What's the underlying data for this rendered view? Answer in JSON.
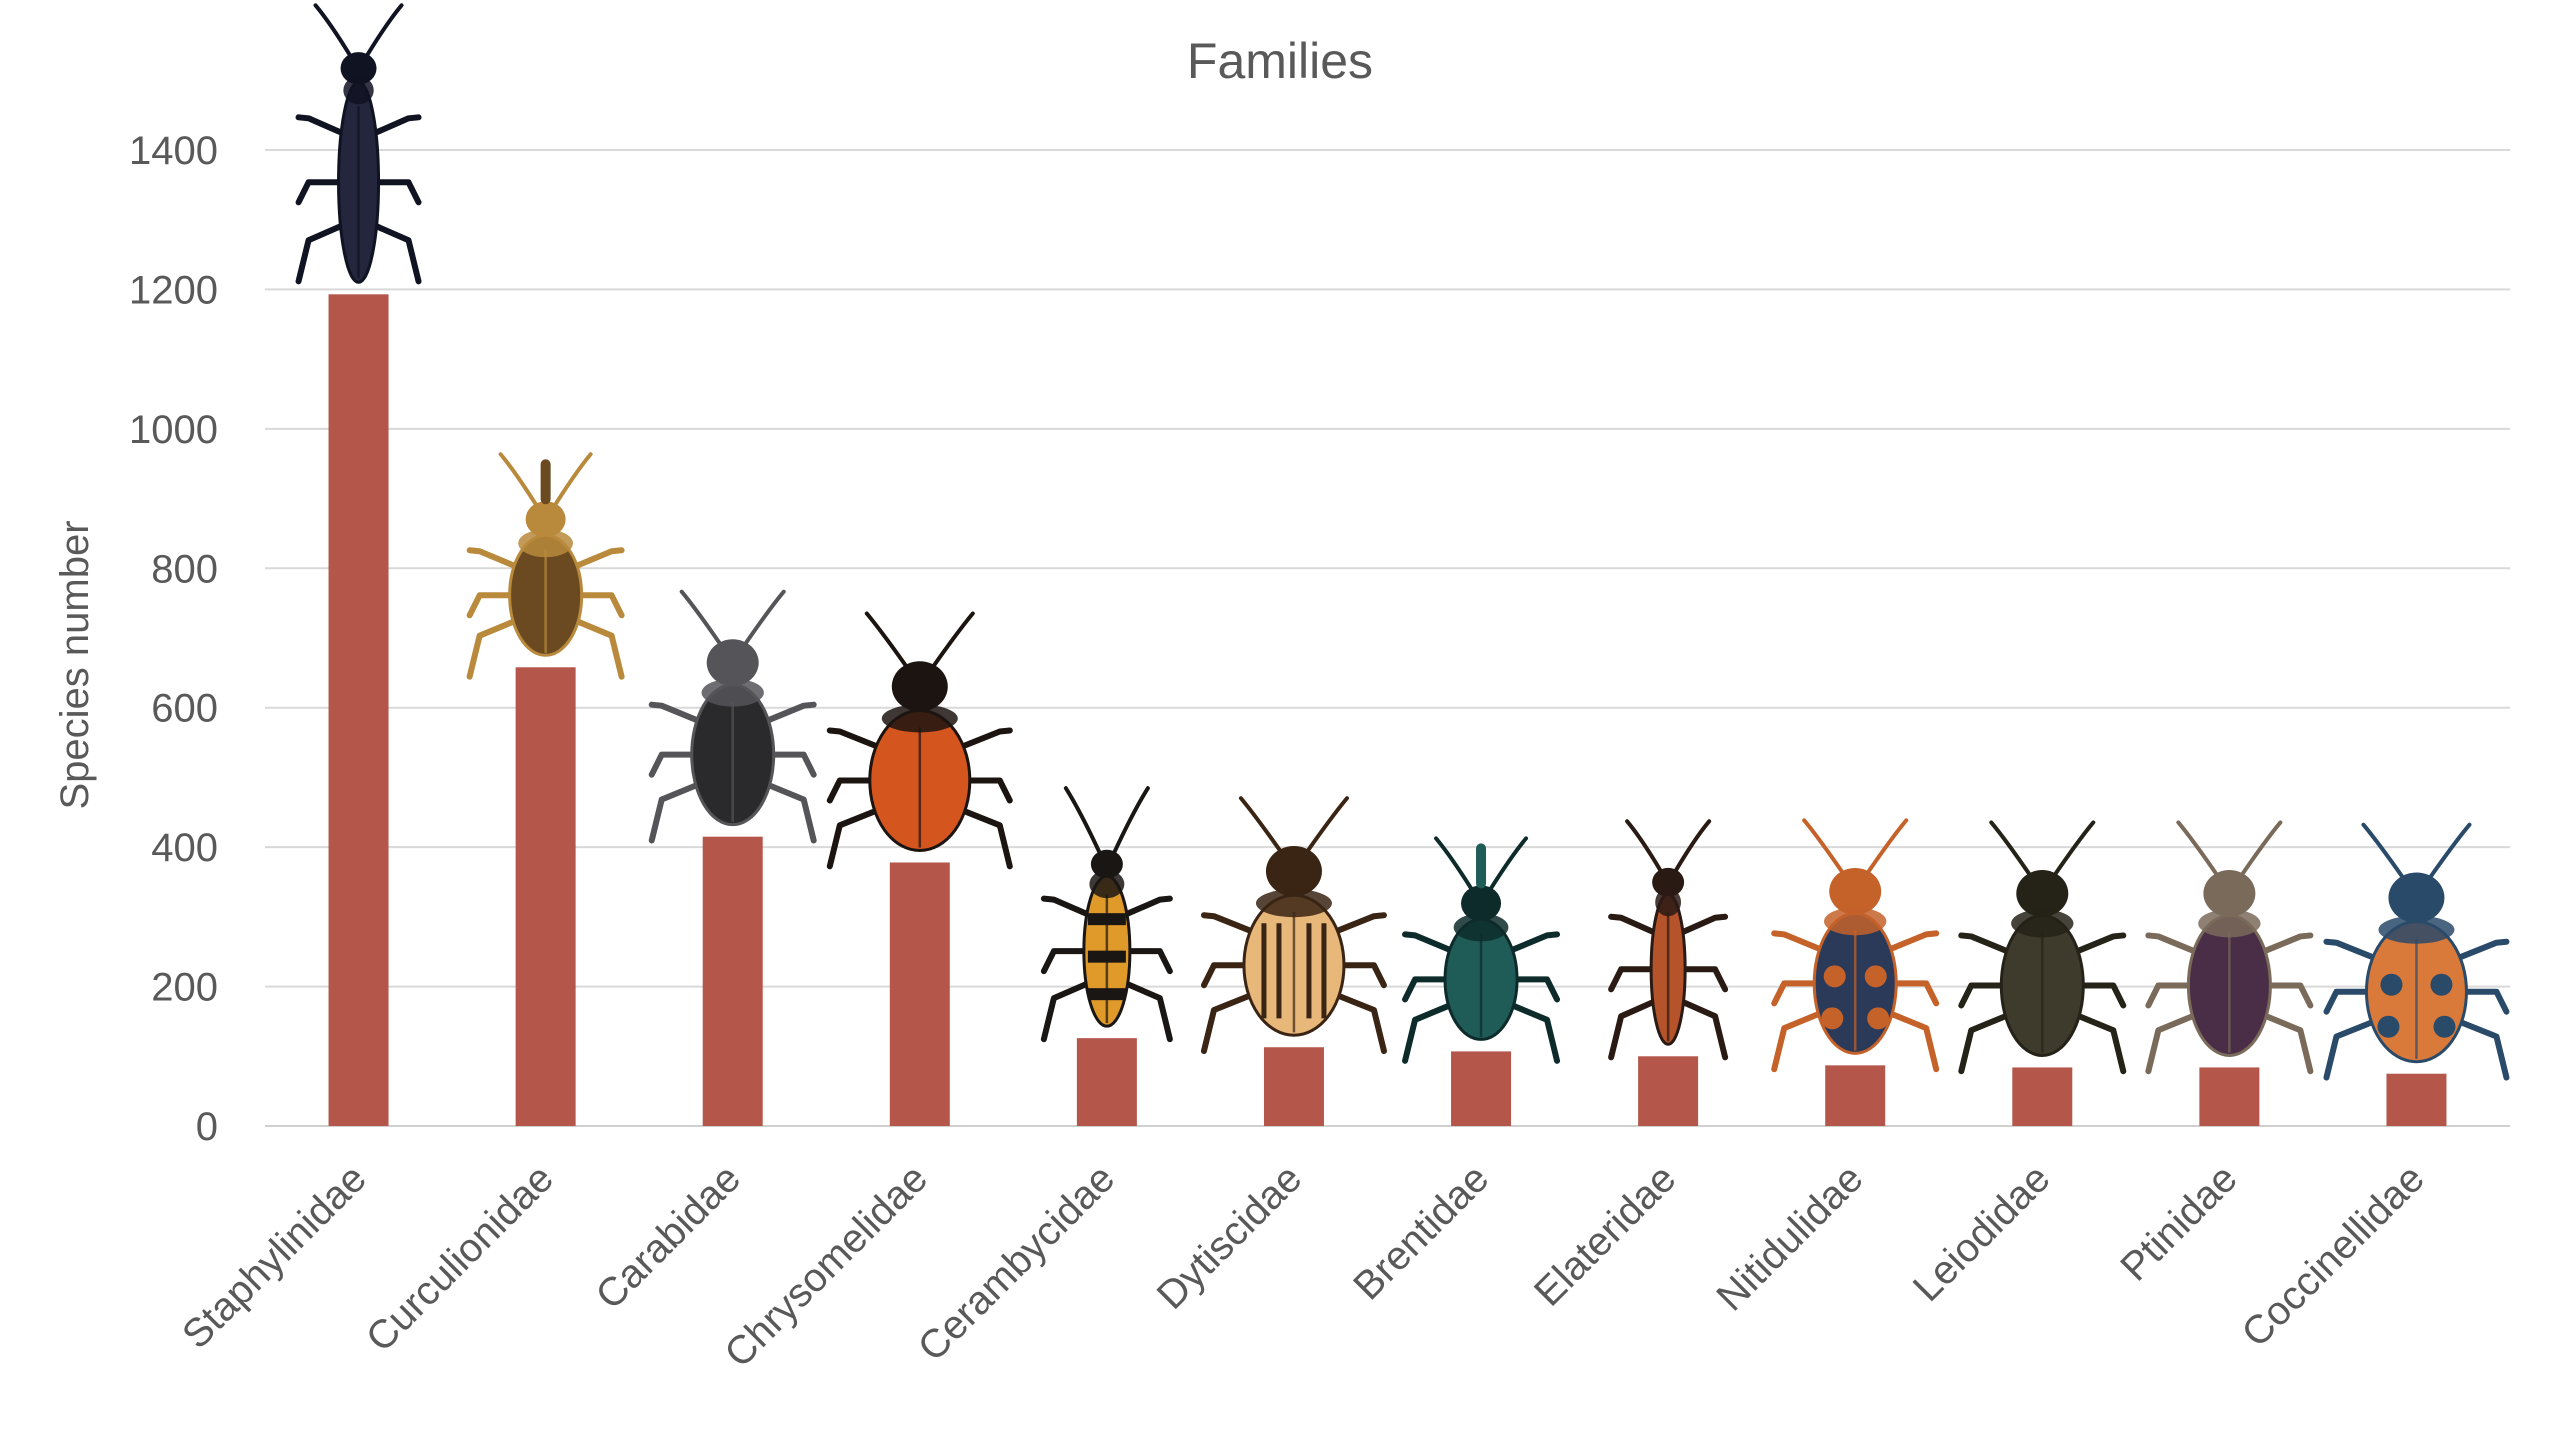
{
  "chart_data": {
    "type": "bar",
    "title": "Families",
    "xlabel": "",
    "ylabel": "Species number",
    "ylim": [
      0,
      1400
    ],
    "yticks": [
      0,
      200,
      400,
      600,
      800,
      1000,
      1200,
      1400
    ],
    "grid": true,
    "categories": [
      "Staphylinidae",
      "Curculionidae",
      "Carabidae",
      "Chrysomelidae",
      "Cerambycidae",
      "Dytiscidae",
      "Brentidae",
      "Elateridae",
      "Nitidulidae",
      "Leiodidae",
      "Ptinidae",
      "Coccinellidae"
    ],
    "values": [
      1193,
      658,
      415,
      378,
      126,
      113,
      107,
      100,
      87,
      84,
      84,
      75
    ],
    "bar_color": "#b5564b",
    "insects": [
      {
        "icon": "rove-beetle-icon",
        "body": "#23263c",
        "accent": "#101322",
        "shape": "long"
      },
      {
        "icon": "weevil-icon",
        "body": "#6b4a22",
        "accent": "#b98a3c",
        "shape": "weevil"
      },
      {
        "icon": "ground-beetle-icon",
        "body": "#2a2a2c",
        "accent": "#555559",
        "shape": "oval"
      },
      {
        "icon": "leaf-beetle-icon",
        "body": "#d4561e",
        "accent": "#1c1410",
        "shape": "round"
      },
      {
        "icon": "longhorn-beetle-icon",
        "body": "#e09a2a",
        "accent": "#1a1614",
        "shape": "longhorn"
      },
      {
        "icon": "diving-beetle-icon",
        "body": "#e8b77a",
        "accent": "#3a2414",
        "shape": "round"
      },
      {
        "icon": "straight-snouted-weevil-icon",
        "body": "#1f5c58",
        "accent": "#0d2b2a",
        "shape": "weevil"
      },
      {
        "icon": "click-beetle-icon",
        "body": "#b5532a",
        "accent": "#2a1a14",
        "shape": "long"
      },
      {
        "icon": "sap-beetle-icon",
        "body": "#2c3a5a",
        "accent": "#c4622a",
        "shape": "oval"
      },
      {
        "icon": "round-fungus-beetle-icon",
        "body": "#3e3a2c",
        "accent": "#252218",
        "shape": "oval"
      },
      {
        "icon": "spider-beetle-icon",
        "body": "#4a2e48",
        "accent": "#7a6a5a",
        "shape": "oval"
      },
      {
        "icon": "ladybird-icon",
        "body": "#d97a3a",
        "accent": "#2a4a6a",
        "shape": "round"
      }
    ]
  }
}
